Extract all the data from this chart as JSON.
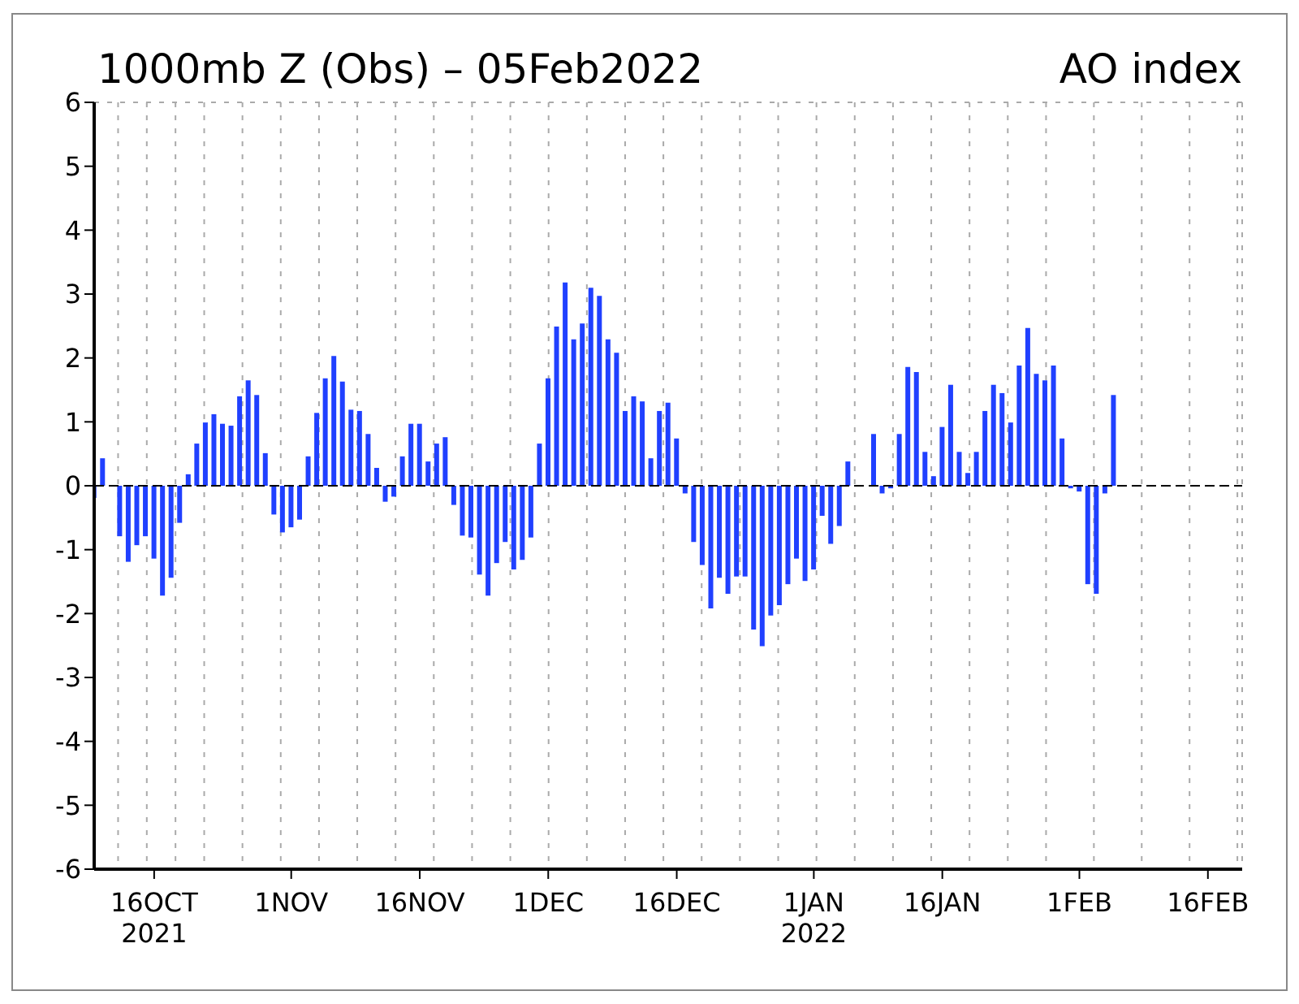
{
  "chart_data": {
    "type": "bar",
    "title": "1000mb Z (Obs) – 05Feb2022",
    "subtitle": "AO index",
    "x": [
      "2021-10-09",
      "2021-10-10",
      "2021-10-11",
      "2021-10-12",
      "2021-10-13",
      "2021-10-14",
      "2021-10-15",
      "2021-10-16",
      "2021-10-17",
      "2021-10-18",
      "2021-10-19",
      "2021-10-20",
      "2021-10-21",
      "2021-10-22",
      "2021-10-23",
      "2021-10-24",
      "2021-10-25",
      "2021-10-26",
      "2021-10-27",
      "2021-10-28",
      "2021-10-29",
      "2021-10-30",
      "2021-10-31",
      "2021-11-01",
      "2021-11-02",
      "2021-11-03",
      "2021-11-04",
      "2021-11-05",
      "2021-11-06",
      "2021-11-07",
      "2021-11-08",
      "2021-11-09",
      "2021-11-10",
      "2021-11-11",
      "2021-11-12",
      "2021-11-13",
      "2021-11-14",
      "2021-11-15",
      "2021-11-16",
      "2021-11-17",
      "2021-11-18",
      "2021-11-19",
      "2021-11-20",
      "2021-11-21",
      "2021-11-22",
      "2021-11-23",
      "2021-11-24",
      "2021-11-25",
      "2021-11-26",
      "2021-11-27",
      "2021-11-28",
      "2021-11-29",
      "2021-11-30",
      "2021-12-01",
      "2021-12-02",
      "2021-12-03",
      "2021-12-04",
      "2021-12-05",
      "2021-12-06",
      "2021-12-07",
      "2021-12-08",
      "2021-12-09",
      "2021-12-10",
      "2021-12-11",
      "2021-12-12",
      "2021-12-13",
      "2021-12-14",
      "2021-12-15",
      "2021-12-16",
      "2021-12-17",
      "2021-12-18",
      "2021-12-19",
      "2021-12-20",
      "2021-12-21",
      "2021-12-22",
      "2021-12-23",
      "2021-12-24",
      "2021-12-25",
      "2021-12-26",
      "2021-12-27",
      "2021-12-28",
      "2021-12-29",
      "2021-12-30",
      "2021-12-31",
      "2022-01-01",
      "2022-01-02",
      "2022-01-03",
      "2022-01-04",
      "2022-01-05",
      "2022-01-06",
      "2022-01-07",
      "2022-01-08",
      "2022-01-09",
      "2022-01-10",
      "2022-01-11",
      "2022-01-12",
      "2022-01-13",
      "2022-01-14",
      "2022-01-15",
      "2022-01-16",
      "2022-01-17",
      "2022-01-18",
      "2022-01-19",
      "2022-01-20",
      "2022-01-21",
      "2022-01-22",
      "2022-01-23",
      "2022-01-24",
      "2022-01-25",
      "2022-01-26",
      "2022-01-27",
      "2022-01-28",
      "2022-01-29",
      "2022-01-30",
      "2022-01-31",
      "2022-02-01",
      "2022-02-02",
      "2022-02-03",
      "2022-02-04",
      "2022-02-05"
    ],
    "values": [
      -0.19,
      0.43,
      null,
      -0.79,
      -1.19,
      -0.93,
      -0.79,
      -1.14,
      -1.72,
      -1.44,
      -0.58,
      0.18,
      0.66,
      0.99,
      1.12,
      0.97,
      0.94,
      1.4,
      1.65,
      1.42,
      0.51,
      -0.45,
      -0.73,
      -0.65,
      -0.53,
      0.46,
      1.14,
      1.68,
      2.03,
      1.63,
      1.19,
      1.17,
      0.81,
      0.28,
      -0.25,
      -0.17,
      0.46,
      0.97,
      0.97,
      0.38,
      0.66,
      0.76,
      -0.3,
      -0.78,
      -0.81,
      -1.39,
      -1.72,
      -1.21,
      -0.88,
      -1.31,
      -1.16,
      -0.81,
      0.66,
      1.68,
      2.49,
      3.18,
      2.29,
      2.54,
      3.1,
      2.97,
      2.29,
      2.08,
      1.17,
      1.4,
      1.32,
      0.43,
      1.17,
      1.3,
      0.74,
      -0.12,
      -0.88,
      -1.24,
      -1.92,
      -1.44,
      -1.69,
      -1.42,
      -1.42,
      -2.25,
      -2.51,
      -2.03,
      -1.87,
      -1.54,
      -1.14,
      -1.49,
      -1.31,
      -0.47,
      -0.91,
      -0.63,
      0.38,
      0,
      0,
      0.81,
      -0.12,
      -0.04,
      0.81,
      1.86,
      1.78,
      0.53,
      0.15,
      0.92,
      1.58,
      0.53,
      0.2,
      0.53,
      1.17,
      1.58,
      1.45,
      0.99,
      1.88,
      2.47,
      1.75,
      1.65,
      1.88,
      0.74,
      -0.04,
      -0.09,
      -1.54,
      -1.69,
      -0.12,
      1.42
    ],
    "color": "#2040ff",
    "xlim": [
      "2021-10-09",
      "2022-02-20"
    ],
    "xticks": [
      {
        "value": "2021-10-16",
        "label": "16OCT\n2021"
      },
      {
        "value": "2021-11-01",
        "label": "1NOV"
      },
      {
        "value": "2021-11-16",
        "label": "16NOV"
      },
      {
        "value": "2021-12-01",
        "label": "1DEC"
      },
      {
        "value": "2021-12-16",
        "label": "16DEC"
      },
      {
        "value": "2022-01-01",
        "label": "1JAN\n2022"
      },
      {
        "value": "2022-01-16",
        "label": "16JAN"
      },
      {
        "value": "2022-02-01",
        "label": "1FEB"
      },
      {
        "value": "2022-02-16",
        "label": "16FEB"
      }
    ],
    "ylim": [
      -6,
      6
    ],
    "yticks": [
      -6,
      -5,
      -4,
      -3,
      -2,
      -1,
      0,
      1,
      2,
      3,
      4,
      5,
      6
    ],
    "ref_lines": [
      {
        "axis": "y",
        "value": 0,
        "color": "#000000",
        "line_style": "dashed"
      }
    ],
    "grid": true
  }
}
